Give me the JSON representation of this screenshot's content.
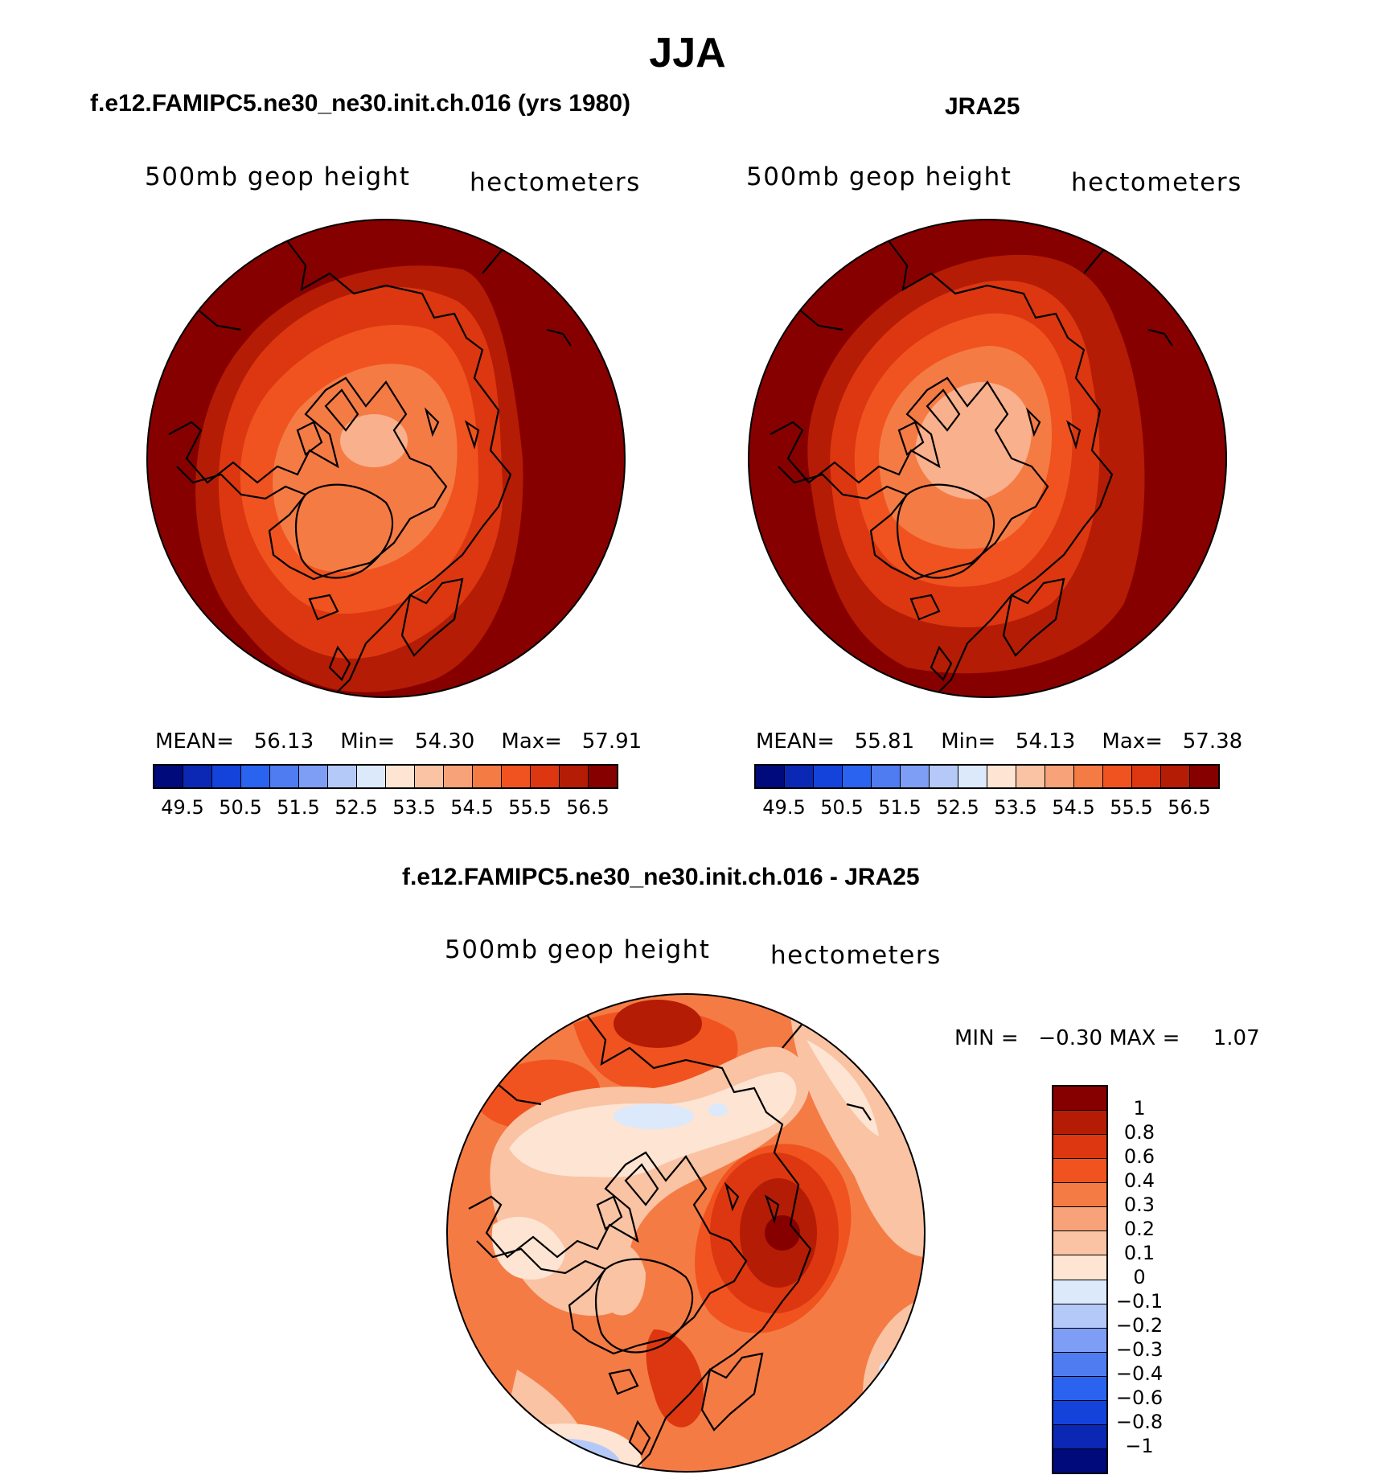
{
  "title": "JJA",
  "panels": {
    "model": {
      "title": "f.e12.FAMIPC5.ne30_ne30.init.ch.016 (yrs 1980)",
      "variable": "500mb geop height",
      "units": "hectometers",
      "stats": {
        "mean_label": "MEAN=",
        "mean": "56.13",
        "min_label": "Min=",
        "min": "54.30",
        "max_label": "Max=",
        "max": "57.91"
      }
    },
    "obs": {
      "title": "JRA25",
      "variable": "500mb geop height",
      "units": "hectometers",
      "stats": {
        "mean_label": "MEAN=",
        "mean": "55.81",
        "min_label": "Min=",
        "min": "54.13",
        "max_label": "Max=",
        "max": "57.38"
      }
    },
    "diff": {
      "title": "f.e12.FAMIPC5.ne30_ne30.init.ch.016 - JRA25",
      "variable": "500mb geop height",
      "units": "hectometers",
      "minmax": "MIN =   −0.30 MAX =     1.07"
    }
  },
  "colorbar_abs": {
    "colors": [
      "#000a7a",
      "#0a28b4",
      "#1443dc",
      "#2a63f0",
      "#4f7cf0",
      "#7e9ef5",
      "#b5c9f8",
      "#dce9fb",
      "#fde4d3",
      "#f9c3a4",
      "#f7a278",
      "#f57b45",
      "#f0531f",
      "#dc3710",
      "#b41c05",
      "#870000"
    ],
    "ticks": [
      "49.5",
      "50.5",
      "51.5",
      "52.5",
      "53.5",
      "54.5",
      "55.5",
      "56.5"
    ]
  },
  "colorbar_diff": {
    "colors": [
      "#870000",
      "#b41c05",
      "#dc3710",
      "#f0531f",
      "#f57b45",
      "#f7a278",
      "#f9c3a4",
      "#fde4d3",
      "#dce9fb",
      "#b5c9f8",
      "#7e9ef5",
      "#4f7cf0",
      "#2a63f0",
      "#1443dc",
      "#0a28b4",
      "#000a7a"
    ],
    "ticks": [
      "1",
      "0.8",
      "0.6",
      "0.4",
      "0.3",
      "0.2",
      "0.1",
      "0",
      "−0.1",
      "−0.2",
      "−0.3",
      "−0.4",
      "−0.6",
      "−0.8",
      "−1"
    ]
  }
}
